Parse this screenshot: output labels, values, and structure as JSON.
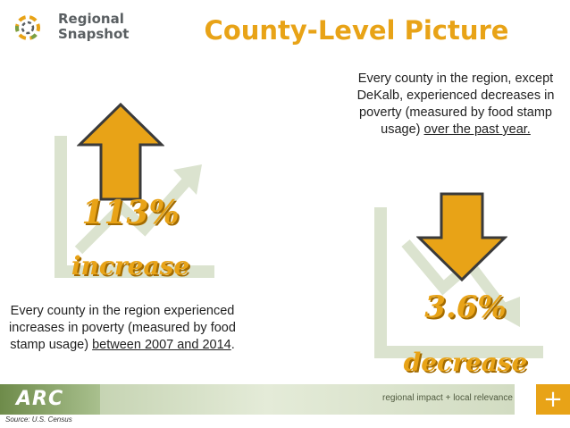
{
  "logo": {
    "line1": "Regional",
    "line2": "Snapshot",
    "icon": "ring-of-segments-icon"
  },
  "title": "County-Level Picture",
  "left": {
    "stat_value": "113%",
    "stat_label": "increase",
    "description": "Every county in the region experienced increases in poverty (measured by food stamp usage)",
    "description_underlined": "between 2007 and 2014",
    "description_end": ".",
    "arrow": "up-arrow-icon",
    "background_icon": "rising-trend-chart-icon"
  },
  "right": {
    "description": "Every county in the region, except DeKalb, experienced decreases in poverty (measured by food stamp usage)",
    "description_underlined": "over the past year.",
    "stat_value": "3.6%",
    "stat_label": "decrease",
    "arrow": "down-arrow-icon",
    "background_icon": "falling-trend-chart-icon"
  },
  "footer": {
    "org": "ARC",
    "tagline": "regional impact + local relevance",
    "plus": "+"
  },
  "source": "Source: U.S. Census",
  "colors": {
    "accent": "#e8a317",
    "accent_dark": "#a36b00",
    "chart_bg": "#dbe3cf",
    "footer_green": "#6e8b4a"
  }
}
